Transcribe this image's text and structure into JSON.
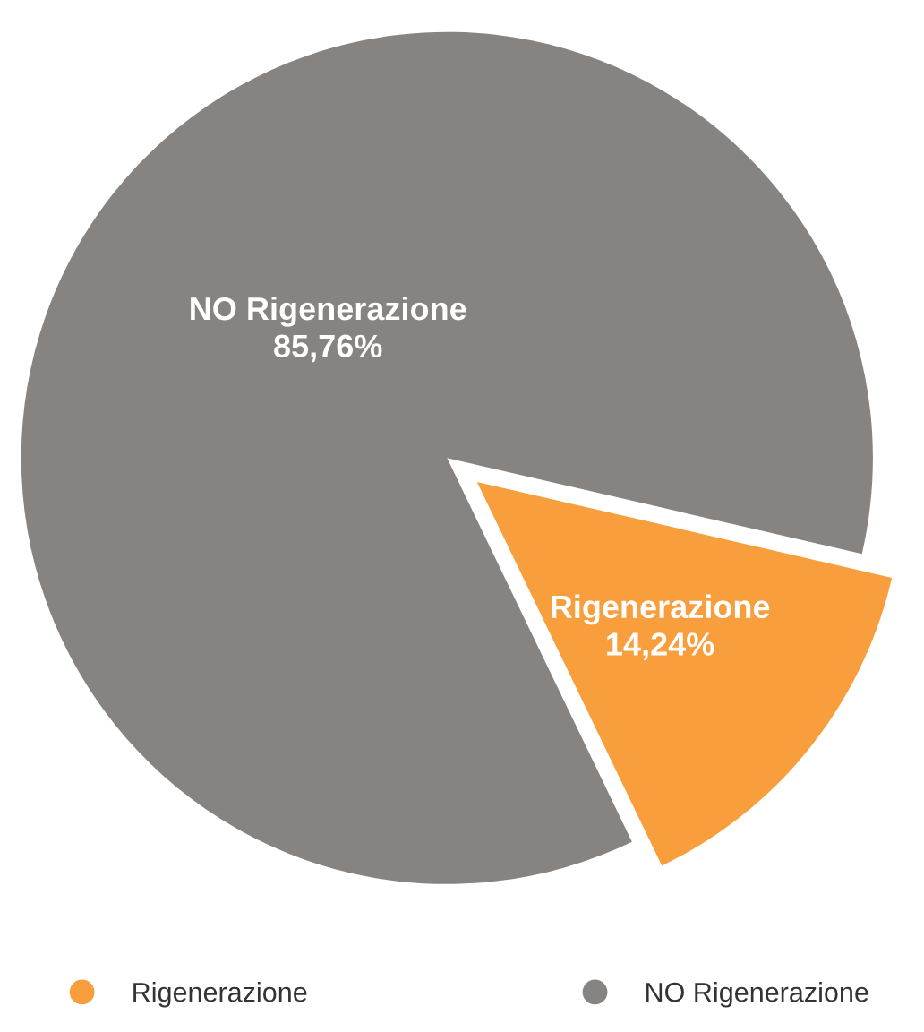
{
  "chart_data": {
    "type": "pie",
    "categories": [
      "Rigenerazione",
      "NO Rigenerazione"
    ],
    "values": [
      14.24,
      85.76
    ],
    "colors": [
      "#f89e3c",
      "#878380"
    ],
    "value_labels": [
      "14,24%",
      "85,76%"
    ],
    "legend": "bottom"
  }
}
